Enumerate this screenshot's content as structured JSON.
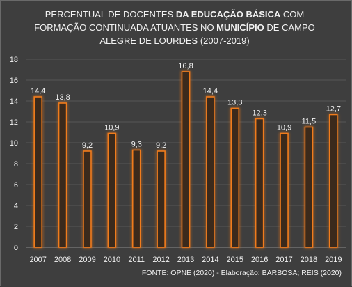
{
  "chart_data": {
    "type": "bar",
    "title_parts": [
      {
        "text": "PERCENTUAL DE DOCENTES ",
        "bold": false
      },
      {
        "text": "DA EDUCAÇÃO BÁSICA",
        "bold": true
      },
      {
        "text": "  COM FORMAÇÃO CONTINUADA ATUANTES NO ",
        "bold": false
      },
      {
        "text": "MUNICÍPIO",
        "bold": true
      },
      {
        "text": " DE CAMPO ALEGRE DE LOURDES  (2007-2019)",
        "bold": false
      }
    ],
    "categories": [
      "2007",
      "2008",
      "2009",
      "2010",
      "2011",
      "2012",
      "2013",
      "2014",
      "2015",
      "2016",
      "2017",
      "2018",
      "2019"
    ],
    "values": [
      14.4,
      13.8,
      9.2,
      10.9,
      9.3,
      9.2,
      16.8,
      14.4,
      13.3,
      12.3,
      10.9,
      11.5,
      12.7
    ],
    "data_labels": [
      "14,4",
      "13,8",
      "9,2",
      "10,9",
      "9,3",
      "9,2",
      "16,8",
      "14,4",
      "13,3",
      "12,3",
      "10,9",
      "11,5",
      "12,7"
    ],
    "y_ticks": [
      "0",
      "2",
      "4",
      "6",
      "8",
      "10",
      "12",
      "14",
      "16",
      "18"
    ],
    "ylim": [
      0,
      18
    ],
    "grid": true,
    "bar_color": "#f07c1e",
    "background_color": "#3e3e3e",
    "source": "FONTE: OPNE (2020) - Elaboração: BARBOSA; REIS (2020)"
  }
}
